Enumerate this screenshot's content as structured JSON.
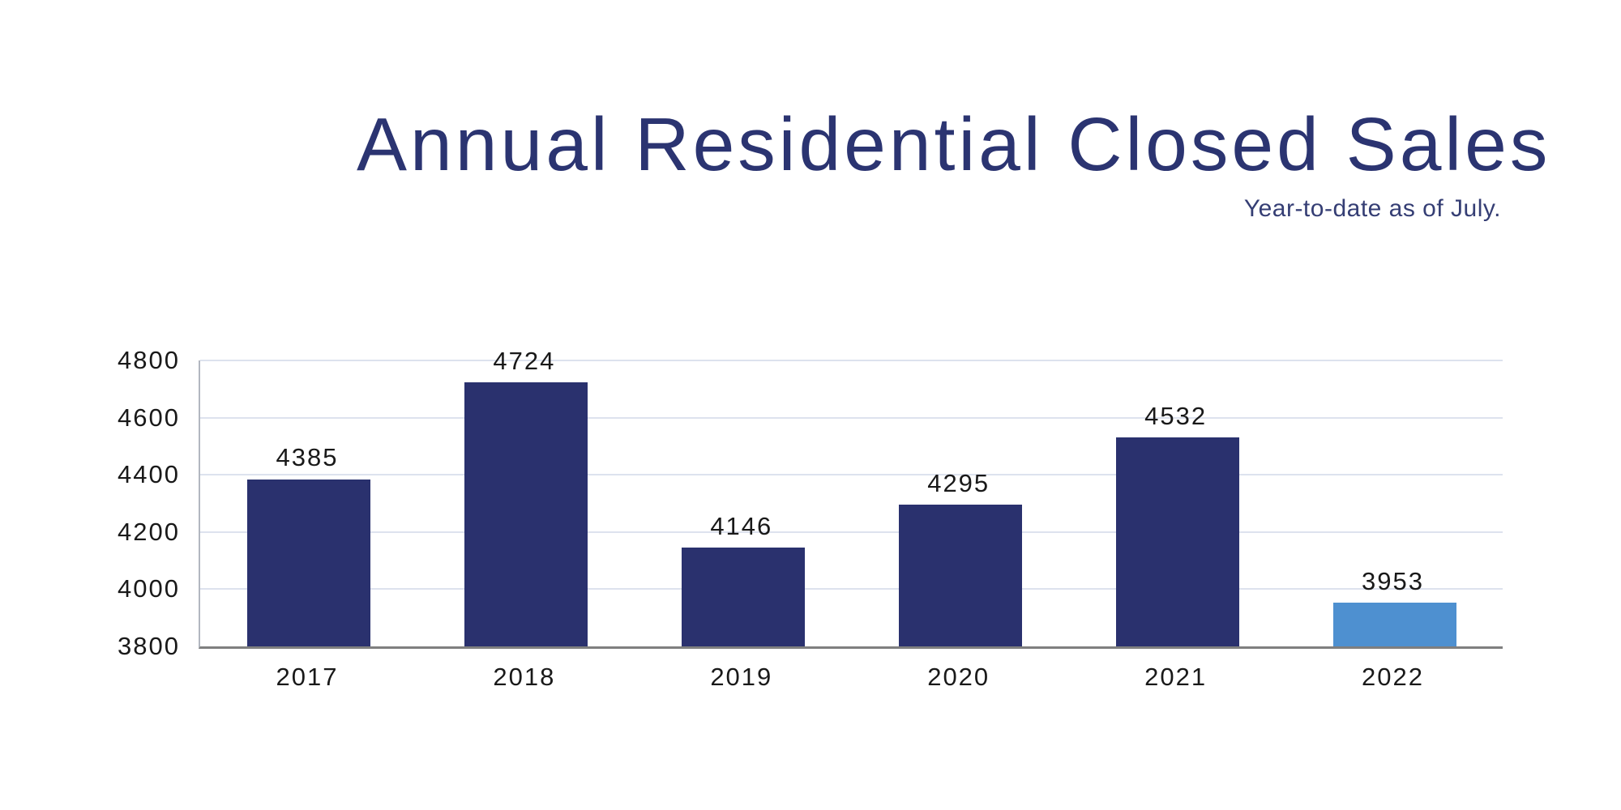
{
  "chart_data": {
    "type": "bar",
    "title": "Annual Residential Closed Sales",
    "subtitle": "Year-to-date as of July.",
    "categories": [
      "2017",
      "2018",
      "2019",
      "2020",
      "2021",
      "2022"
    ],
    "values": [
      4385,
      4724,
      4146,
      4295,
      4532,
      3953
    ],
    "value_labels": [
      "4385",
      "4724",
      "4146",
      "4295",
      "4532",
      "3953"
    ],
    "xlabel": "",
    "ylabel": "",
    "ylim": [
      3800,
      4800
    ],
    "yticks": [
      4800,
      4600,
      4400,
      4200,
      4000,
      3800
    ],
    "grid": true,
    "legend": false,
    "colors": {
      "bar": "#2a316e",
      "highlight": "#4e90d0",
      "title": "#2b3471",
      "subtitle": "#353e74",
      "gridline": "#dde2ee",
      "baseline": "#7f7f7f",
      "axis_line": "#b2b7c0",
      "tick_label": "#191919",
      "background": "#ffffff"
    },
    "highlight_index": 5
  }
}
